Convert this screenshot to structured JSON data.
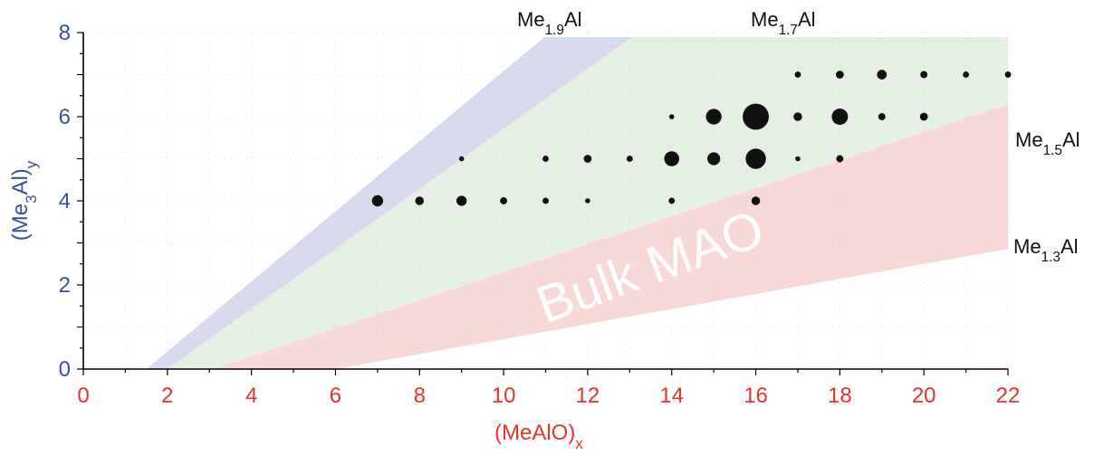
{
  "chart_data": {
    "type": "scatter",
    "xlabel": {
      "main": "(MeAlO)",
      "sub": "x"
    },
    "ylabel": {
      "pre": "(Me",
      "sub": "3",
      "post": "Al)",
      "sub2": "y"
    },
    "xlim": [
      0,
      22
    ],
    "ylim": [
      0,
      8
    ],
    "x_ticks": [
      "0",
      "2",
      "4",
      "6",
      "8",
      "10",
      "12",
      "14",
      "16",
      "18",
      "20",
      "22"
    ],
    "y_ticks": [
      "0",
      "2",
      "4",
      "6",
      "8"
    ],
    "grid": "dotted",
    "colors": {
      "x_axis_text": "#e8332a",
      "y_axis_text": "#3a4fa0",
      "points": "#111111",
      "band_blue": "#d8daee",
      "band_green": "#e6efe3",
      "band_red": "#f9d8d8",
      "bulk_text": "#ffffff"
    },
    "bands": [
      {
        "name": "Me1.9Al-Me1.7Al",
        "color": "#d8daee"
      },
      {
        "name": "Me1.7Al-Me1.5Al",
        "color": "#e6efe3"
      },
      {
        "name": "Me1.5Al-Me1.3Al",
        "color": "#f9d8d8"
      }
    ],
    "line_labels": [
      {
        "base": "Me",
        "sub": "1.9",
        "tail": "Al"
      },
      {
        "base": "Me",
        "sub": "1.7",
        "tail": "Al"
      },
      {
        "base": "Me",
        "sub": "1.5",
        "tail": "Al"
      },
      {
        "base": "Me",
        "sub": "1.3",
        "tail": "Al"
      }
    ],
    "bulk_label": "Bulk MAO",
    "points": [
      {
        "x": 7,
        "y": 4,
        "size": 1.0
      },
      {
        "x": 8,
        "y": 4,
        "size": 0.5
      },
      {
        "x": 9,
        "y": 4,
        "size": 0.8
      },
      {
        "x": 10,
        "y": 4,
        "size": 0.3
      },
      {
        "x": 11,
        "y": 4,
        "size": 0.2
      },
      {
        "x": 12,
        "y": 4,
        "size": 0.1
      },
      {
        "x": 14,
        "y": 4,
        "size": 0.2
      },
      {
        "x": 16,
        "y": 4,
        "size": 0.5
      },
      {
        "x": 9,
        "y": 5,
        "size": 0.1
      },
      {
        "x": 11,
        "y": 5,
        "size": 0.2
      },
      {
        "x": 12,
        "y": 5,
        "size": 0.4
      },
      {
        "x": 13,
        "y": 5,
        "size": 0.2
      },
      {
        "x": 14,
        "y": 5,
        "size": 2.0
      },
      {
        "x": 15,
        "y": 5,
        "size": 1.4
      },
      {
        "x": 16,
        "y": 5,
        "size": 4.0
      },
      {
        "x": 17,
        "y": 5,
        "size": 0.1
      },
      {
        "x": 18,
        "y": 5,
        "size": 0.3
      },
      {
        "x": 14,
        "y": 6,
        "size": 0.1
      },
      {
        "x": 15,
        "y": 6,
        "size": 2.2
      },
      {
        "x": 16,
        "y": 6,
        "size": 7.0
      },
      {
        "x": 17,
        "y": 6,
        "size": 0.5
      },
      {
        "x": 18,
        "y": 6,
        "size": 2.4
      },
      {
        "x": 19,
        "y": 6,
        "size": 0.3
      },
      {
        "x": 20,
        "y": 6,
        "size": 0.4
      },
      {
        "x": 17,
        "y": 7,
        "size": 0.2
      },
      {
        "x": 18,
        "y": 7,
        "size": 0.4
      },
      {
        "x": 19,
        "y": 7,
        "size": 0.7
      },
      {
        "x": 20,
        "y": 7,
        "size": 0.3
      },
      {
        "x": 21,
        "y": 7,
        "size": 0.2
      },
      {
        "x": 22,
        "y": 7,
        "size": 0.2
      }
    ]
  }
}
